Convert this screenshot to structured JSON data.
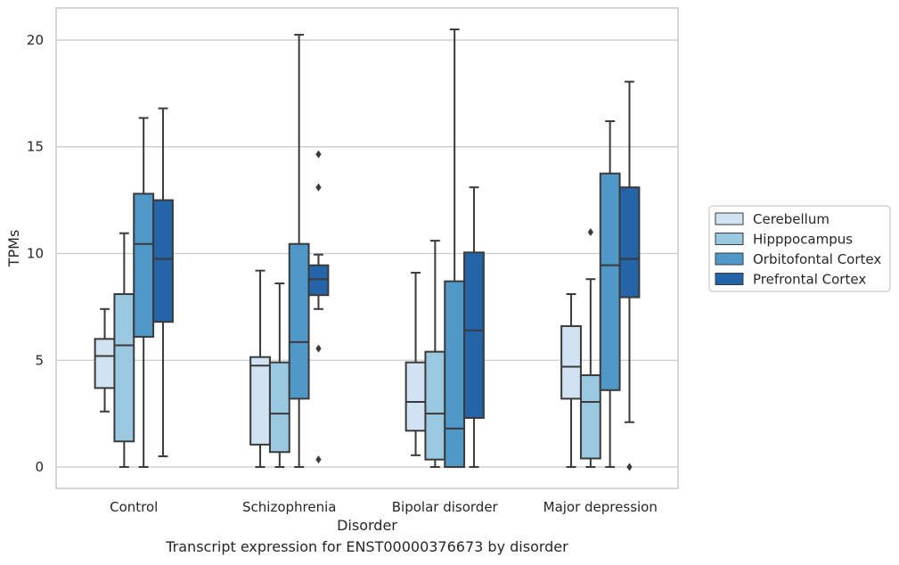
{
  "chart_data": {
    "type": "box",
    "xlabel": "Disorder",
    "ylabel": "TPMs",
    "caption": "Transcript expression for ENST00000376673 by disorder",
    "ylim": [
      -1,
      21.5
    ],
    "yticks": [
      0,
      5,
      10,
      15,
      20
    ],
    "grid": "horizontal",
    "legend_position": "right",
    "categories": [
      "Control",
      "Schizophrenia",
      "Bipolar disorder",
      "Major depression"
    ],
    "series": [
      {
        "name": "Cerebellum",
        "color": "#d1e2f2",
        "boxes": [
          {
            "whisker_low": 2.6,
            "q1": 3.7,
            "median": 5.2,
            "q3": 6.0,
            "whisker_high": 7.4,
            "outliers": []
          },
          {
            "whisker_low": 0.0,
            "q1": 1.05,
            "median": 4.75,
            "q3": 5.15,
            "whisker_high": 9.2,
            "outliers": []
          },
          {
            "whisker_low": 0.55,
            "q1": 1.7,
            "median": 3.05,
            "q3": 4.9,
            "whisker_high": 9.1,
            "outliers": []
          },
          {
            "whisker_low": 0.0,
            "q1": 3.2,
            "median": 4.7,
            "q3": 6.6,
            "whisker_high": 8.1,
            "outliers": []
          }
        ]
      },
      {
        "name": "Hipppocampus",
        "color": "#9ac8e0",
        "boxes": [
          {
            "whisker_low": 0.0,
            "q1": 1.2,
            "median": 5.7,
            "q3": 8.1,
            "whisker_high": 10.95,
            "outliers": []
          },
          {
            "whisker_low": 0.0,
            "q1": 0.7,
            "median": 2.5,
            "q3": 4.9,
            "whisker_high": 8.6,
            "outliers": []
          },
          {
            "whisker_low": 0.0,
            "q1": 0.35,
            "median": 2.5,
            "q3": 5.4,
            "whisker_high": 10.6,
            "outliers": []
          },
          {
            "whisker_low": 0.0,
            "q1": 0.4,
            "median": 3.05,
            "q3": 4.3,
            "whisker_high": 8.8,
            "outliers": [
              11.0
            ]
          }
        ]
      },
      {
        "name": "Orbitofontal Cortex",
        "color": "#5098c8",
        "boxes": [
          {
            "whisker_low": 0.0,
            "q1": 6.1,
            "median": 10.45,
            "q3": 12.8,
            "whisker_high": 16.35,
            "outliers": []
          },
          {
            "whisker_low": 0.0,
            "q1": 3.2,
            "median": 5.85,
            "q3": 10.45,
            "whisker_high": 20.25,
            "outliers": []
          },
          {
            "whisker_low": 0.0,
            "q1": 0.0,
            "median": 1.8,
            "q3": 8.7,
            "whisker_high": 20.5,
            "outliers": []
          },
          {
            "whisker_low": 0.0,
            "q1": 3.6,
            "median": 9.45,
            "q3": 13.75,
            "whisker_high": 16.2,
            "outliers": []
          }
        ]
      },
      {
        "name": "Prefrontal Cortex",
        "color": "#2464a9",
        "boxes": [
          {
            "whisker_low": 0.5,
            "q1": 6.8,
            "median": 9.75,
            "q3": 12.5,
            "whisker_high": 16.8,
            "outliers": []
          },
          {
            "whisker_low": 7.4,
            "q1": 8.05,
            "median": 8.8,
            "q3": 9.45,
            "whisker_high": 9.95,
            "outliers": [
              14.65,
              13.1,
              5.55,
              0.35
            ]
          },
          {
            "whisker_low": 0.0,
            "q1": 2.3,
            "median": 6.4,
            "q3": 10.05,
            "whisker_high": 13.1,
            "outliers": []
          },
          {
            "whisker_low": 2.1,
            "q1": 7.95,
            "median": 9.75,
            "q3": 13.1,
            "whisker_high": 18.05,
            "outliers": [
              0.0
            ]
          }
        ]
      }
    ]
  }
}
